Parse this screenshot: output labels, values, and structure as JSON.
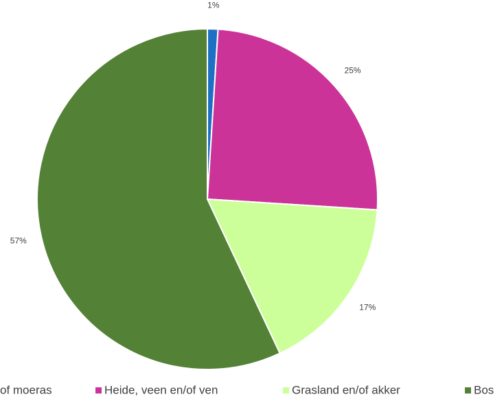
{
  "chart_data": {
    "type": "pie",
    "categories": [
      "of moeras",
      "Heide, veen en/of ven",
      "Grasland en/of akker",
      "Bos"
    ],
    "values": [
      1,
      25,
      17,
      57
    ],
    "value_labels": [
      "1%",
      "25%",
      "17%",
      "57%"
    ],
    "colors": [
      "#1f6fc5",
      "#cc3399",
      "#ccff99",
      "#538135"
    ],
    "legend": "bottom"
  }
}
